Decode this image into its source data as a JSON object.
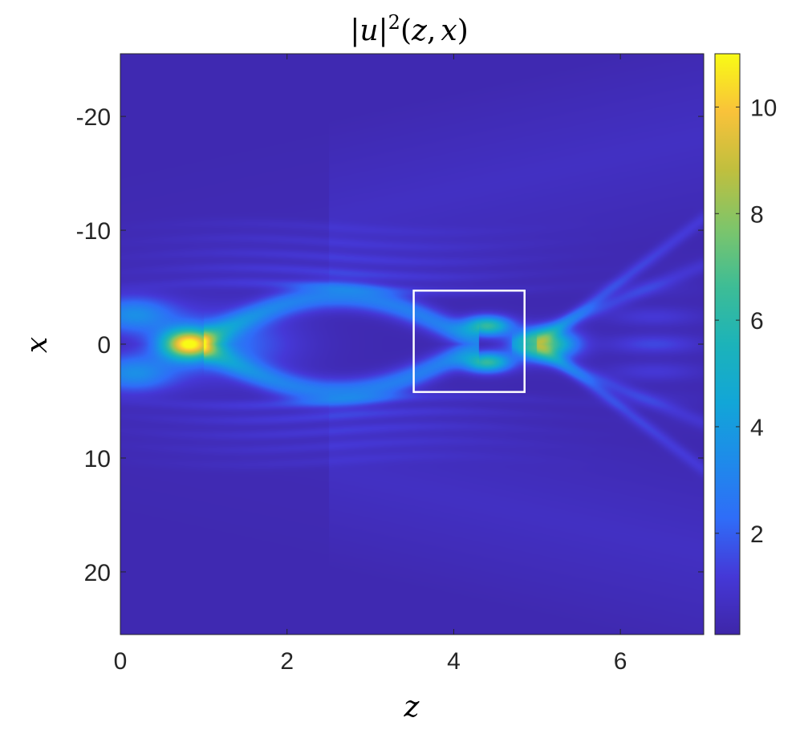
{
  "chart_data": {
    "type": "heatmap",
    "title": "|u|^2(z,x)",
    "title_parts": {
      "lhs_bar_l": "|",
      "lhs_var": "u",
      "lhs_bar_r": "|",
      "power": "2",
      "open": "(",
      "arg1": "z",
      "comma": ",",
      "arg2": "x",
      "close": ")"
    },
    "xlabel": "z",
    "ylabel": "x",
    "xlim": [
      0,
      7
    ],
    "ylim": [
      -25.5,
      25.5
    ],
    "y_reversed": true,
    "x_ticks": [
      0,
      2,
      4,
      6
    ],
    "x_tick_labels": [
      "0",
      "2",
      "4",
      "6"
    ],
    "y_ticks": [
      -20,
      -10,
      0,
      10,
      20
    ],
    "y_tick_labels": [
      "-20",
      "-10",
      "0",
      "10",
      "20"
    ],
    "colorbar": {
      "range": [
        0.1,
        11
      ],
      "ticks": [
        2,
        4,
        6,
        8,
        10
      ],
      "tick_labels": [
        "2",
        "4",
        "6",
        "8",
        "10"
      ],
      "colormap": "parula"
    },
    "features": [
      {
        "kind": "peak",
        "z": 0.8,
        "x": 0,
        "value": 9.5
      },
      {
        "kind": "peak",
        "z": 4.4,
        "x": -1.6,
        "value": 6.8
      },
      {
        "kind": "peak",
        "z": 4.4,
        "x": 1.6,
        "value": 6.8
      },
      {
        "kind": "peak",
        "z": 5.1,
        "x": 0,
        "value": 7.2
      }
    ],
    "annotation_box": {
      "z": [
        3.52,
        4.85
      ],
      "x": [
        -4.7,
        4.2
      ],
      "color": "#ffffff"
    },
    "grid": false
  }
}
